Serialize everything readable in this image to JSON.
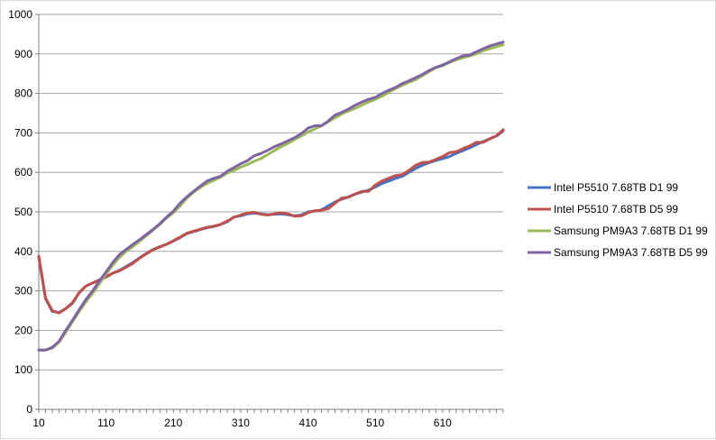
{
  "chart_data": {
    "type": "line",
    "title": "",
    "xlabel": "",
    "ylabel": "",
    "x_tick_labels": [
      "10",
      "110",
      "210",
      "310",
      "410",
      "510",
      "610"
    ],
    "y_tick_labels": [
      "0",
      "100",
      "200",
      "300",
      "400",
      "500",
      "600",
      "700",
      "800",
      "900",
      "1000"
    ],
    "xlim": [
      10,
      700
    ],
    "ylim": [
      0,
      1000
    ],
    "grid": "horizontal",
    "legend_position": "right",
    "series": [
      {
        "name": "Intel P5510 7.68TB D1 99",
        "color": "#4472c4",
        "x": [
          10,
          20,
          30,
          40,
          50,
          60,
          70,
          80,
          90,
          100,
          110,
          120,
          130,
          140,
          150,
          160,
          170,
          180,
          190,
          200,
          210,
          220,
          230,
          240,
          250,
          260,
          270,
          280,
          290,
          300,
          310,
          320,
          330,
          340,
          350,
          360,
          370,
          380,
          390,
          400,
          410,
          420,
          430,
          440,
          450,
          460,
          470,
          480,
          490,
          500,
          510,
          520,
          530,
          540,
          550,
          560,
          570,
          580,
          590,
          600,
          610,
          620,
          630,
          640,
          650,
          660,
          670,
          680,
          690,
          700
        ],
        "values": [
          385,
          280,
          248,
          245,
          255,
          268,
          295,
          312,
          320,
          328,
          336,
          345,
          352,
          362,
          372,
          384,
          395,
          405,
          412,
          418,
          426,
          435,
          445,
          450,
          455,
          460,
          463,
          468,
          475,
          487,
          490,
          495,
          497,
          495,
          493,
          494,
          495,
          493,
          490,
          492,
          500,
          502,
          505,
          515,
          525,
          532,
          538,
          545,
          550,
          555,
          563,
          572,
          578,
          585,
          590,
          600,
          610,
          618,
          625,
          630,
          635,
          640,
          648,
          655,
          662,
          670,
          678,
          685,
          692,
          705
        ]
      },
      {
        "name": "Intel P5510 7.68TB D5 99",
        "color": "#c0504d",
        "x": [
          10,
          20,
          30,
          40,
          50,
          60,
          70,
          80,
          90,
          100,
          110,
          120,
          130,
          140,
          150,
          160,
          170,
          180,
          190,
          200,
          210,
          220,
          230,
          240,
          250,
          260,
          270,
          280,
          290,
          300,
          310,
          320,
          330,
          340,
          350,
          360,
          370,
          380,
          390,
          400,
          410,
          420,
          430,
          440,
          450,
          460,
          470,
          480,
          490,
          500,
          510,
          520,
          530,
          540,
          550,
          560,
          570,
          580,
          590,
          600,
          610,
          620,
          630,
          640,
          650,
          660,
          670,
          680,
          690,
          700
        ],
        "values": [
          388,
          282,
          250,
          244,
          255,
          270,
          296,
          312,
          320,
          327,
          335,
          345,
          351,
          360,
          370,
          383,
          394,
          404,
          411,
          418,
          427,
          436,
          446,
          451,
          456,
          461,
          464,
          468,
          477,
          486,
          492,
          497,
          499,
          494,
          492,
          495,
          498,
          495,
          489,
          490,
          498,
          503,
          504,
          508,
          522,
          535,
          537,
          545,
          552,
          552,
          568,
          578,
          585,
          592,
          594,
          605,
          618,
          625,
          626,
          633,
          640,
          650,
          652,
          660,
          667,
          676,
          676,
          685,
          693,
          708
        ]
      },
      {
        "name": "Samsung PM9A3 7.68TB D1 99",
        "color": "#9bbb59",
        "x": [
          10,
          20,
          30,
          40,
          50,
          60,
          70,
          80,
          90,
          100,
          110,
          120,
          130,
          140,
          150,
          160,
          170,
          180,
          190,
          200,
          210,
          220,
          230,
          240,
          250,
          260,
          270,
          280,
          290,
          300,
          310,
          320,
          330,
          340,
          350,
          360,
          370,
          380,
          390,
          400,
          410,
          420,
          430,
          440,
          450,
          460,
          470,
          480,
          490,
          500,
          510,
          520,
          530,
          540,
          550,
          560,
          570,
          580,
          590,
          600,
          610,
          620,
          630,
          640,
          650,
          660,
          670,
          680,
          690,
          700
        ],
        "values": [
          150,
          150,
          155,
          170,
          195,
          222,
          248,
          272,
          294,
          318,
          343,
          365,
          385,
          400,
          412,
          426,
          440,
          454,
          468,
          485,
          498,
          515,
          535,
          550,
          562,
          572,
          580,
          588,
          598,
          605,
          613,
          620,
          628,
          635,
          645,
          655,
          665,
          673,
          683,
          692,
          702,
          710,
          718,
          728,
          738,
          748,
          755,
          762,
          770,
          778,
          785,
          793,
          803,
          812,
          820,
          828,
          835,
          845,
          855,
          865,
          870,
          878,
          885,
          890,
          895,
          900,
          908,
          913,
          918,
          923
        ]
      },
      {
        "name": "Samsung PM9A3 7.68TB D5 99",
        "color": "#8064a2",
        "x": [
          10,
          20,
          30,
          40,
          50,
          60,
          70,
          80,
          90,
          100,
          110,
          120,
          130,
          140,
          150,
          160,
          170,
          180,
          190,
          200,
          210,
          220,
          230,
          240,
          250,
          260,
          270,
          280,
          290,
          300,
          310,
          320,
          330,
          340,
          350,
          360,
          370,
          380,
          390,
          400,
          410,
          420,
          430,
          440,
          450,
          460,
          470,
          480,
          490,
          500,
          510,
          520,
          530,
          540,
          550,
          560,
          570,
          580,
          590,
          600,
          610,
          620,
          630,
          640,
          650,
          660,
          670,
          680,
          690,
          700
        ],
        "values": [
          150,
          150,
          157,
          172,
          200,
          225,
          252,
          278,
          300,
          325,
          348,
          372,
          392,
          405,
          418,
          430,
          443,
          456,
          470,
          487,
          502,
          522,
          538,
          552,
          565,
          578,
          585,
          590,
          603,
          612,
          622,
          630,
          642,
          648,
          656,
          665,
          672,
          680,
          688,
          698,
          712,
          718,
          718,
          730,
          745,
          752,
          760,
          770,
          778,
          785,
          790,
          800,
          808,
          815,
          825,
          832,
          840,
          848,
          858,
          866,
          872,
          880,
          888,
          895,
          897,
          905,
          913,
          920,
          925,
          930
        ]
      }
    ]
  }
}
